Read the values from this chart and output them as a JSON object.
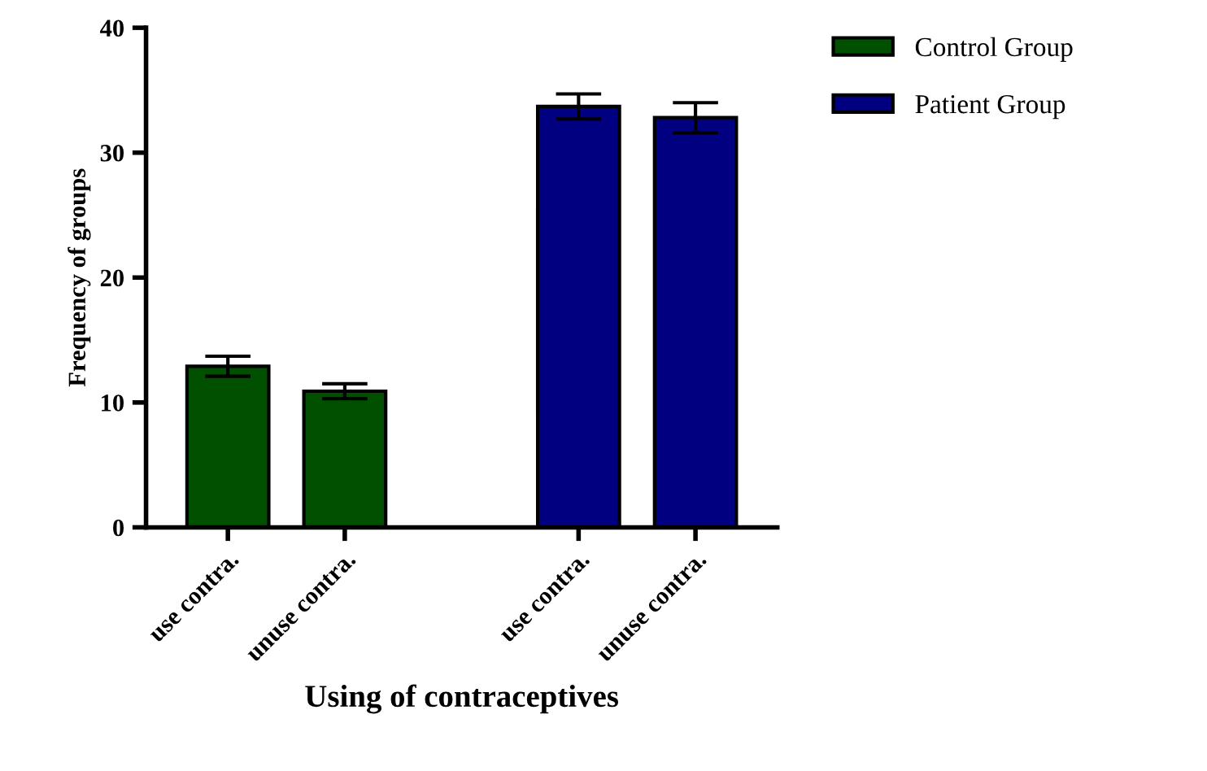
{
  "chart_data": {
    "type": "bar",
    "xlabel": "Using of contraceptives",
    "ylabel": "Frequency of groups",
    "categories": [
      "use contra.",
      "unuse contra.",
      null,
      "use contra.",
      "unuse contra."
    ],
    "series": [
      {
        "name": "Control Group",
        "color": "#005000",
        "values": [
          12.9,
          10.9,
          null,
          null,
          null
        ],
        "errors": [
          0.8,
          0.6,
          null,
          null,
          null
        ]
      },
      {
        "name": "Patient Group",
        "color": "#000080",
        "values": [
          null,
          null,
          null,
          33.7,
          32.8
        ],
        "errors": [
          null,
          null,
          null,
          1.0,
          1.2
        ]
      }
    ],
    "ylim": [
      0,
      40
    ],
    "yticks": [
      0,
      10,
      20,
      30,
      40
    ],
    "grid": false,
    "legend": "top right"
  }
}
